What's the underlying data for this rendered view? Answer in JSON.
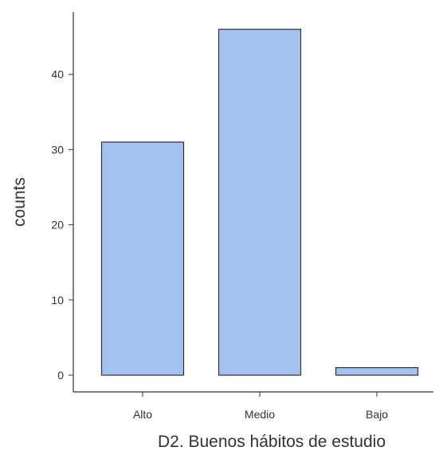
{
  "chart_data": {
    "type": "bar",
    "categories": [
      "Alto",
      "Medio",
      "Bajo"
    ],
    "values": [
      31,
      46,
      1
    ],
    "xlabel": "D2. Buenos hábitos de estudio",
    "ylabel": "counts",
    "ylim": [
      0,
      48
    ],
    "yticks": [
      0,
      10,
      20,
      30,
      40
    ],
    "grid": false,
    "bar_color": "#a4c2f0",
    "edge_color": "#333333"
  }
}
